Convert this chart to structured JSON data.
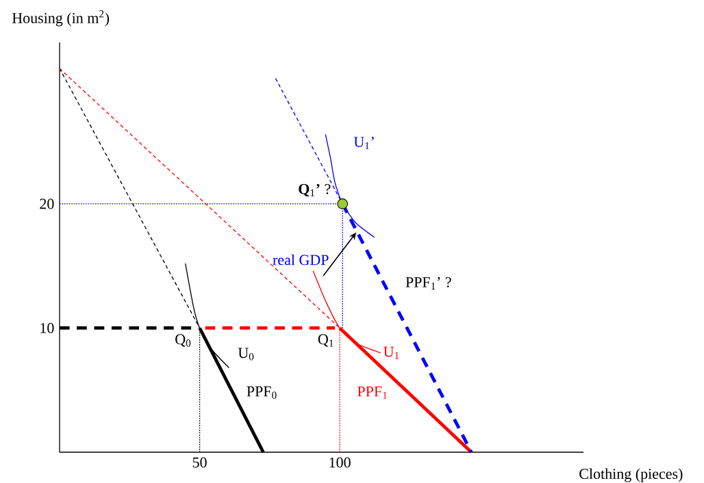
{
  "chart_data": {
    "type": "line",
    "xlabel": "Clothing (pieces)",
    "ylabel": "Housing (in m$^{2}$)",
    "xlim": [
      0,
      187
    ],
    "ylim": [
      0,
      33
    ],
    "xticks": [
      50,
      100
    ],
    "yticks": [
      10,
      20
    ],
    "grid": false,
    "series": [
      {
        "color": "#000000",
        "line_style": "dashed",
        "x": [
          0,
          50
        ],
        "values": [
          30.9,
          10
        ]
      },
      {
        "color": "#ff0000",
        "line_style": "dashed",
        "x": [
          0,
          100
        ],
        "values": [
          30.9,
          10
        ]
      },
      {
        "color": "#0000ff",
        "line_style": "dashed",
        "x": [
          77.1,
          101
        ],
        "values": [
          30.1,
          20
        ]
      },
      {
        "color": "#000000",
        "line_style": "dashed",
        "x": [
          0,
          48.3
        ],
        "values": [
          10,
          10
        ]
      },
      {
        "color": "#ff0000",
        "line_style": "dashed",
        "x": [
          52,
          98.3
        ],
        "values": [
          10,
          10
        ]
      },
      {
        "color": "#000000",
        "line_style": "solid",
        "x": [
          50,
          72.7
        ],
        "values": [
          10,
          0
        ]
      },
      {
        "color": "#ff0000",
        "line_style": "solid",
        "x": [
          100,
          147
        ],
        "values": [
          10,
          0
        ]
      },
      {
        "color": "#0000ff",
        "line_style": "dashed",
        "x": [
          101,
          147
        ],
        "values": [
          20,
          0
        ]
      },
      {
        "color": "#000000",
        "line_style": "dotted",
        "x": [
          50,
          50
        ],
        "values": [
          0,
          10
        ]
      },
      {
        "color": "#ff0000",
        "line_style": "dotted",
        "x": [
          100,
          100
        ],
        "values": [
          0,
          10
        ]
      },
      {
        "color": "#0000ff",
        "line_style": "dotted",
        "x": [
          101,
          101
        ],
        "values": [
          10,
          20
        ]
      },
      {
        "color": "#0000ff",
        "line_style": "dotted",
        "x": [
          0,
          101
        ],
        "values": [
          20,
          20
        ]
      },
      {
        "color": "#000000",
        "line_style": "solid",
        "x": [
          44.9,
          47.8,
          50,
          54.4,
          60.5
        ],
        "values": [
          15.2,
          11.7,
          10,
          8.25,
          6.8
        ]
      },
      {
        "color": "#ff0000",
        "line_style": "solid",
        "x": [
          90.5,
          95.1,
          100,
          105.6,
          114.6
        ],
        "values": [
          14.6,
          12.1,
          10,
          8.8,
          8.0
        ]
      },
      {
        "color": "#0000ff",
        "line_style": "solid",
        "x": [
          94.9,
          96.6,
          98.3,
          101,
          105.6,
          112.4
        ],
        "values": [
          25.6,
          23.8,
          21.7,
          20,
          18.5,
          17.3
        ]
      },
      {
        "type": "scatter",
        "marker": "circle",
        "color": "#99cc33",
        "x": [
          101
        ],
        "values": [
          20
        ]
      }
    ],
    "annotations": [
      "Q$_{0}$",
      "U$_{0}$",
      "PPF$_{0}$",
      "Q$_{1}$",
      "U$_{1}$",
      "PPF$_{1}$",
      "PPF$_{1}$’ ?",
      {
        "text": "real GDP",
        "x": 105.9,
        "y": 17.7
      },
      "**Q**$_{1}$**’** ?",
      "U$_{1}$’"
    ]
  }
}
